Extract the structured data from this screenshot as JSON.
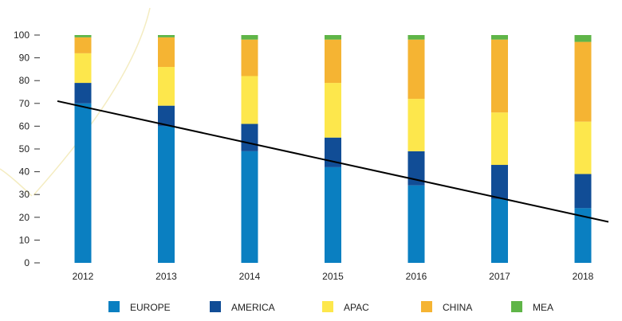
{
  "chart_data": {
    "type": "bar",
    "stacked": true,
    "categories": [
      "2012",
      "2013",
      "2014",
      "2015",
      "2016",
      "2017",
      "2018"
    ],
    "series": [
      {
        "name": "EUROPE",
        "color": "#0a7fc1",
        "values": [
          70,
          60,
          49,
          42,
          34,
          28,
          24
        ]
      },
      {
        "name": "AMERICA",
        "color": "#114d96",
        "values": [
          9,
          9,
          12,
          13,
          15,
          15,
          15
        ]
      },
      {
        "name": "APAC",
        "color": "#fde74c",
        "values": [
          13,
          17,
          21,
          24,
          23,
          23,
          23
        ]
      },
      {
        "name": "CHINA",
        "color": "#f5b433",
        "values": [
          7,
          13,
          16,
          19,
          26,
          32,
          35
        ]
      },
      {
        "name": "MEA",
        "color": "#5fb548",
        "values": [
          1,
          1,
          2,
          2,
          2,
          2,
          3
        ]
      }
    ],
    "ylim": [
      0,
      100
    ],
    "yticks": [
      "0",
      "10",
      "20",
      "30",
      "40",
      "50",
      "60",
      "70",
      "80",
      "90",
      "100"
    ],
    "trend_line": {
      "start": {
        "x": "2012",
        "y": 71
      },
      "end": {
        "x": "2018",
        "y": 18
      },
      "color": "#000000"
    },
    "legend_position": "bottom",
    "grid": false,
    "title": "",
    "xlabel": "",
    "ylabel": ""
  }
}
